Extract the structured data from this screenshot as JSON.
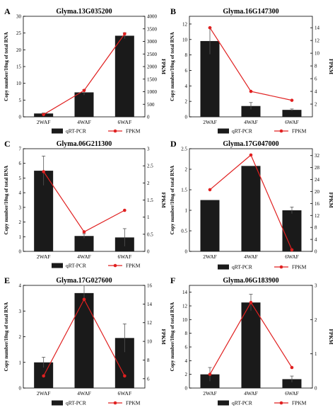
{
  "figure": {
    "legend_bar_label": "qRT-PCR",
    "legend_line_label": "FPKM"
  },
  "chart_data": [
    {
      "panel": "A",
      "title": "Glyma.13G035200",
      "type": "bar+line",
      "categories": [
        "2WAF",
        "4WAF",
        "6WAF"
      ],
      "ylabel": "Copy number/10ng of total RNA",
      "y2label": "FPKM",
      "ylim": [
        0,
        30
      ],
      "y2lim": [
        0,
        4000
      ],
      "yticks": [
        0,
        5,
        10,
        15,
        20,
        25,
        30
      ],
      "y2ticks": [
        0,
        500,
        1000,
        1500,
        2000,
        2500,
        3000,
        3500,
        4000
      ],
      "series": [
        {
          "name": "qRT-PCR",
          "kind": "bar",
          "values": [
            1.0,
            7.3,
            24.2
          ],
          "errors": [
            0.15,
            0.8,
            0.9
          ]
        },
        {
          "name": "FPKM",
          "kind": "line",
          "axis": "right",
          "values": [
            90,
            1050,
            3300
          ]
        }
      ],
      "legend": "bottom"
    },
    {
      "panel": "B",
      "title": "Glyma.16G147300",
      "type": "bar+line",
      "categories": [
        "2WAF",
        "4WAF",
        "6WAF"
      ],
      "ylabel": "Copy number/10ng of total RNA",
      "y2label": "FPKM",
      "ylim": [
        0,
        13
      ],
      "y2lim": [
        0,
        15.8
      ],
      "yticks": [
        0,
        2,
        4,
        6,
        8,
        10,
        12
      ],
      "y2ticks": [
        2,
        4,
        6,
        8,
        10,
        12,
        14
      ],
      "series": [
        {
          "name": "qRT-PCR",
          "kind": "bar",
          "values": [
            9.8,
            1.4,
            0.9
          ],
          "errors": [
            1.7,
            0.45,
            0.12
          ]
        },
        {
          "name": "FPKM",
          "kind": "line",
          "axis": "right",
          "values": [
            14.0,
            4.0,
            2.6
          ]
        }
      ],
      "legend": "bottom"
    },
    {
      "panel": "C",
      "title": "Glyma.06G211300",
      "type": "bar+line",
      "categories": [
        "2WAF",
        "4WAF",
        "6WAF"
      ],
      "ylabel": "Copy number/10ng of total RNA",
      "y2label": "FPKM",
      "ylim": [
        0,
        7
      ],
      "y2lim": [
        0,
        3.0
      ],
      "yticks": [
        0,
        1,
        2,
        3,
        4,
        5,
        6,
        7
      ],
      "y2ticks": [
        0.0,
        0.5,
        1.0,
        1.5,
        2.0,
        2.5,
        3.0
      ],
      "series": [
        {
          "name": "qRT-PCR",
          "kind": "bar",
          "values": [
            5.5,
            1.05,
            0.95
          ],
          "errors": [
            1.0,
            0.15,
            0.6
          ]
        },
        {
          "name": "FPKM",
          "kind": "line",
          "axis": "right",
          "values": [
            2.33,
            0.57,
            1.2
          ]
        }
      ],
      "legend": "bottom"
    },
    {
      "panel": "D",
      "title": "Glyma.17G047000",
      "type": "bar+line",
      "categories": [
        "2WAF",
        "4WAF",
        "6WAF"
      ],
      "ylabel": "Copy number/10ng of total RNA",
      "y2label": "FPKM",
      "ylim": [
        0,
        2.5
      ],
      "y2lim": [
        0,
        34.3
      ],
      "yticks": [
        0.0,
        0.5,
        1.0,
        1.5,
        2.0,
        2.5
      ],
      "y2ticks": [
        0,
        4,
        8,
        12,
        16,
        20,
        24,
        28,
        32
      ],
      "series": [
        {
          "name": "qRT-PCR",
          "kind": "bar",
          "values": [
            1.25,
            2.08,
            1.0
          ],
          "errors": [
            0,
            0,
            0.08
          ]
        },
        {
          "name": "FPKM",
          "kind": "line",
          "axis": "right",
          "values": [
            20.6,
            32.2,
            0.5
          ]
        }
      ],
      "legend": "bottom"
    },
    {
      "panel": "E",
      "title": "Glyma.17G027600",
      "type": "bar+line",
      "categories": [
        "2WAF",
        "4WAF",
        "6WAF"
      ],
      "ylabel": "Copy number/10ng of total RNA",
      "y2label": "FPKM",
      "ylim": [
        0,
        4
      ],
      "y2lim": [
        5,
        16
      ],
      "yticks": [
        0,
        1,
        2,
        3,
        4
      ],
      "y2ticks": [
        6,
        8,
        10,
        12,
        14,
        16
      ],
      "series": [
        {
          "name": "qRT-PCR",
          "kind": "bar",
          "values": [
            1.0,
            3.7,
            1.95
          ],
          "errors": [
            0.2,
            0.3,
            0.55
          ]
        },
        {
          "name": "FPKM",
          "kind": "line",
          "axis": "right",
          "values": [
            6.3,
            14.5,
            6.3
          ]
        }
      ],
      "legend": "bottom"
    },
    {
      "panel": "F",
      "title": "Glyma.06G183900",
      "type": "bar+line",
      "categories": [
        "2WAF",
        "4WAF",
        "6WAF"
      ],
      "ylabel": "Copy number/10ng of total RNA",
      "y2label": "FPKM",
      "ylim": [
        0,
        15
      ],
      "y2lim": [
        0,
        3
      ],
      "yticks": [
        0,
        2,
        4,
        6,
        8,
        10,
        12,
        14
      ],
      "y2ticks": [
        0,
        1,
        2,
        3
      ],
      "series": [
        {
          "name": "qRT-PCR",
          "kind": "bar",
          "values": [
            2.0,
            12.5,
            1.3
          ],
          "errors": [
            1.0,
            1.2,
            0.45
          ]
        },
        {
          "name": "FPKM",
          "kind": "line",
          "axis": "right",
          "values": [
            0.4,
            2.5,
            0.6
          ]
        }
      ],
      "legend": "bottom"
    }
  ]
}
